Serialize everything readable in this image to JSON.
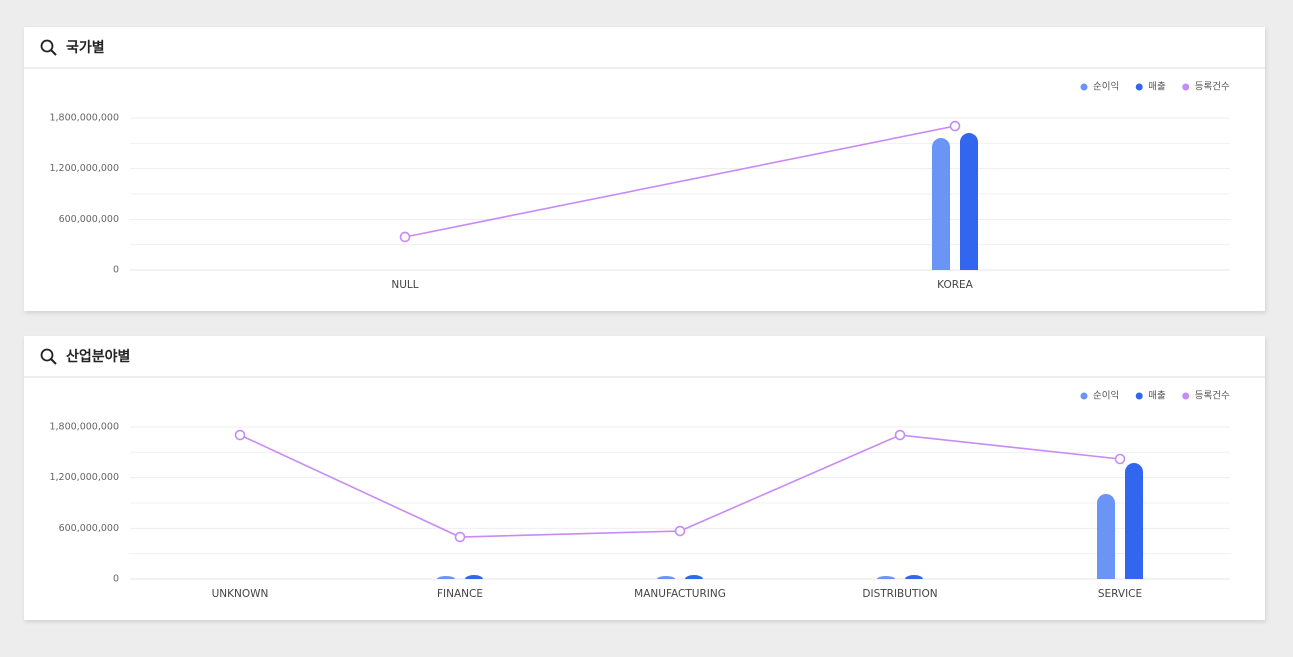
{
  "chart_data": [
    {
      "type": "bar",
      "title": "국가별",
      "categories": [
        "NULL",
        "KOREA"
      ],
      "series": [
        {
          "name": "순이익",
          "color": "#6a94f5",
          "values": [
            0,
            1563000000
          ]
        },
        {
          "name": "매출",
          "color": "#3366ee",
          "values": [
            0,
            1622000000
          ]
        },
        {
          "name": "등록건수",
          "color": "#c88af5",
          "type": "line",
          "values": [
            391000000,
            1705000000
          ]
        }
      ],
      "ylim": [
        0,
        1800000000
      ],
      "yticks": [
        0,
        {
          "value": 600000000,
          "label": "600,000,000"
        },
        {
          "value": 1200000000,
          "label": "1,200,000,000"
        },
        {
          "value": 1800000000,
          "label": "1,800,000,000"
        }
      ],
      "minor_yticks": [
        300000000,
        900000000,
        1500000000
      ],
      "grid": true,
      "legend": "top-right"
    },
    {
      "type": "bar",
      "title": "산업분야별",
      "categories": [
        "UNKNOWN",
        "FINANCE",
        "MANUFACTURING",
        "DISTRIBUTION",
        "SERVICE"
      ],
      "series": [
        {
          "name": "순이익",
          "color": "#6a94f5",
          "values": [
            0,
            35000000,
            35000000,
            35000000,
            1007000000
          ]
        },
        {
          "name": "매출",
          "color": "#3366ee",
          "values": [
            0,
            47000000,
            47000000,
            47000000,
            1374000000
          ]
        },
        {
          "name": "등록건수",
          "color": "#c88af5",
          "type": "line",
          "values": [
            1705000000,
            497000000,
            568000000,
            1705000000,
            1421000000
          ]
        }
      ],
      "ylim": [
        0,
        1800000000
      ],
      "yticks": [
        0,
        {
          "value": 600000000,
          "label": "600,000,000"
        },
        {
          "value": 1200000000,
          "label": "1,200,000,000"
        },
        {
          "value": 1800000000,
          "label": "1,800,000,000"
        }
      ],
      "minor_yticks": [
        300000000,
        900000000,
        1500000000
      ],
      "grid": true,
      "legend": "top-right"
    }
  ]
}
